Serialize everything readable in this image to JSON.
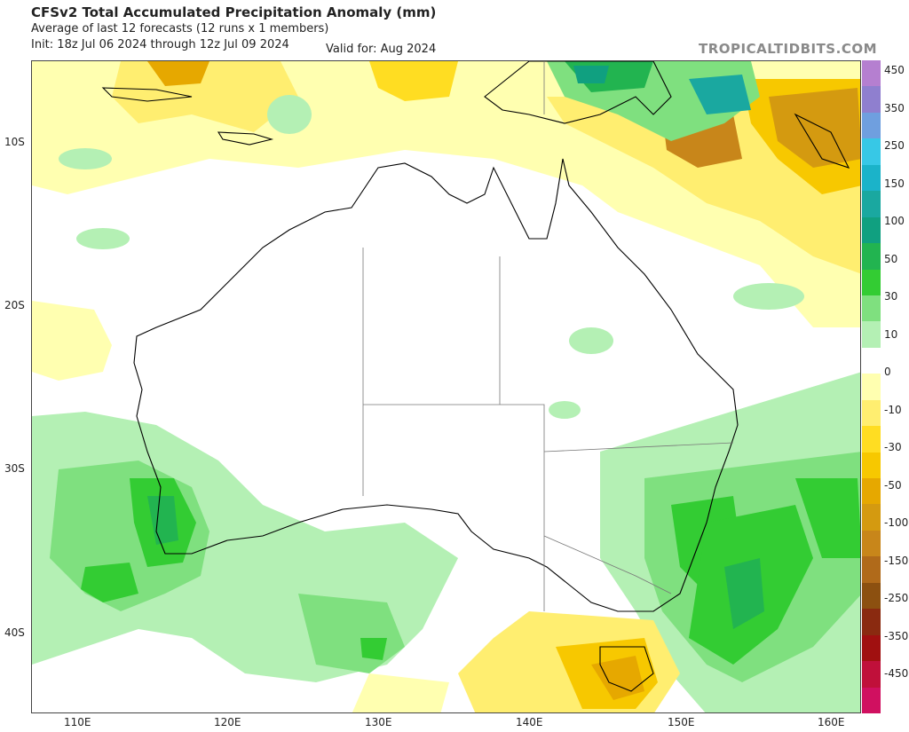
{
  "header": {
    "title": "CFSv2 Total Accumulated Precipitation Anomaly (mm)",
    "subtitle": "Average of last 12 forecasts (12 runs x 1 members)",
    "init": "Init: 18z Jul 06 2024 through 12z Jul 09 2024",
    "valid": "Valid for: Aug 2024"
  },
  "brand": "TROPICALTIDBITS.COM",
  "axes": {
    "lat_labels": [
      "10S",
      "20S",
      "30S",
      "40S"
    ],
    "lon_labels": [
      "110E",
      "120E",
      "130E",
      "140E",
      "150E",
      "160E"
    ]
  },
  "colorbar": {
    "labels": [
      "450",
      "350",
      "250",
      "150",
      "100",
      "50",
      "30",
      "10",
      "0",
      "-10",
      "-30",
      "-50",
      "-100",
      "-150",
      "-250",
      "-350",
      "-450"
    ],
    "colors": [
      "#b57fd0",
      "#8f7fcf",
      "#6f9fdf",
      "#37c8e6",
      "#1bb3c9",
      "#1aa8a0",
      "#10a080",
      "#22b450",
      "#33cc33",
      "#7fe07f",
      "#b4f0b4",
      "#ffffff",
      "#ffffb0",
      "#ffee70",
      "#ffdd22",
      "#f7c800",
      "#e6a800",
      "#d49a10",
      "#c8861a",
      "#b06a1a",
      "#8c5010",
      "#8a2a10",
      "#a01010",
      "#c0103a",
      "#d01060"
    ]
  }
}
